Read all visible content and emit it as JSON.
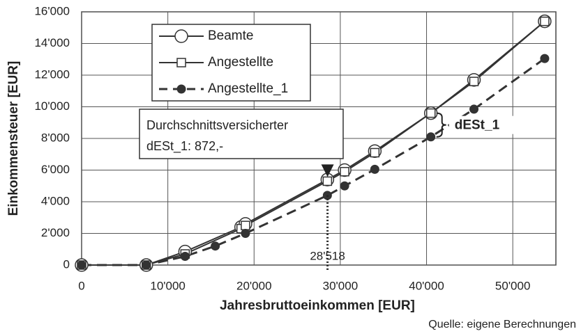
{
  "chart_data": {
    "type": "line",
    "xlabel": "Jahresbruttoeinkommen [EUR]",
    "ylabel": "Einkommensteuer [EUR]",
    "source": "Quelle: eigene Berechnungen",
    "xlim": [
      0,
      55000
    ],
    "ylim": [
      0,
      16000
    ],
    "xticks": [
      0,
      {
        "value": 10000,
        "label": "10'000"
      },
      {
        "value": 20000,
        "label": "20'000"
      },
      {
        "value": 30000,
        "label": "30'000"
      },
      {
        "value": 40000,
        "label": "40'000"
      },
      {
        "value": 50000,
        "label": "50'000"
      }
    ],
    "yticks": [
      0,
      {
        "value": 2000,
        "label": "2'000"
      },
      {
        "value": 4000,
        "label": "4'000"
      },
      {
        "value": 6000,
        "label": "6'000"
      },
      {
        "value": 8000,
        "label": "8'000"
      },
      {
        "value": 10000,
        "label": "10'000"
      },
      {
        "value": 12000,
        "label": "12'000"
      },
      {
        "value": 14000,
        "label": "14'000"
      },
      {
        "value": 16000,
        "label": "16'000"
      }
    ],
    "grid": true,
    "legend": "upper left",
    "series": [
      {
        "name": "Beamte",
        "color": "#333333",
        "marker": "circle",
        "dash": "solid",
        "x": [
          0,
          7500,
          12000,
          18500,
          19000,
          28500,
          30500,
          34000,
          40500,
          45500,
          53700
        ],
        "values": [
          0,
          0,
          850,
          2400,
          2600,
          5400,
          6000,
          7200,
          9600,
          11700,
          15400
        ]
      },
      {
        "name": "Angestellte",
        "color": "#333333",
        "marker": "square",
        "dash": "solid",
        "x": [
          0,
          7500,
          12000,
          18500,
          19000,
          28500,
          30500,
          34000,
          40500,
          45500,
          53700
        ],
        "values": [
          0,
          0,
          700,
          2300,
          2500,
          5300,
          5900,
          7100,
          9600,
          11600,
          15400
        ]
      },
      {
        "name": "Angestellte_1",
        "color": "#333333",
        "marker": "filled-circle",
        "dash": "dashed",
        "x": [
          0,
          7500,
          12000,
          15500,
          19000,
          28500,
          30500,
          34000,
          40500,
          45500,
          53700
        ],
        "values": [
          0,
          0,
          550,
          1200,
          2000,
          4400,
          5000,
          6050,
          8100,
          9850,
          13050
        ]
      }
    ],
    "annotations": {
      "box": [
        "Durchschnittsversicherter",
        "dESt_1: 872,-"
      ],
      "average": {
        "label": "28'518",
        "x": 28518,
        "y": 4400,
        "y_top": 5300
      },
      "difference": {
        "label": "dESt_1",
        "x": 40500,
        "y_top": 9600,
        "y_bottom": 8100
      }
    }
  }
}
